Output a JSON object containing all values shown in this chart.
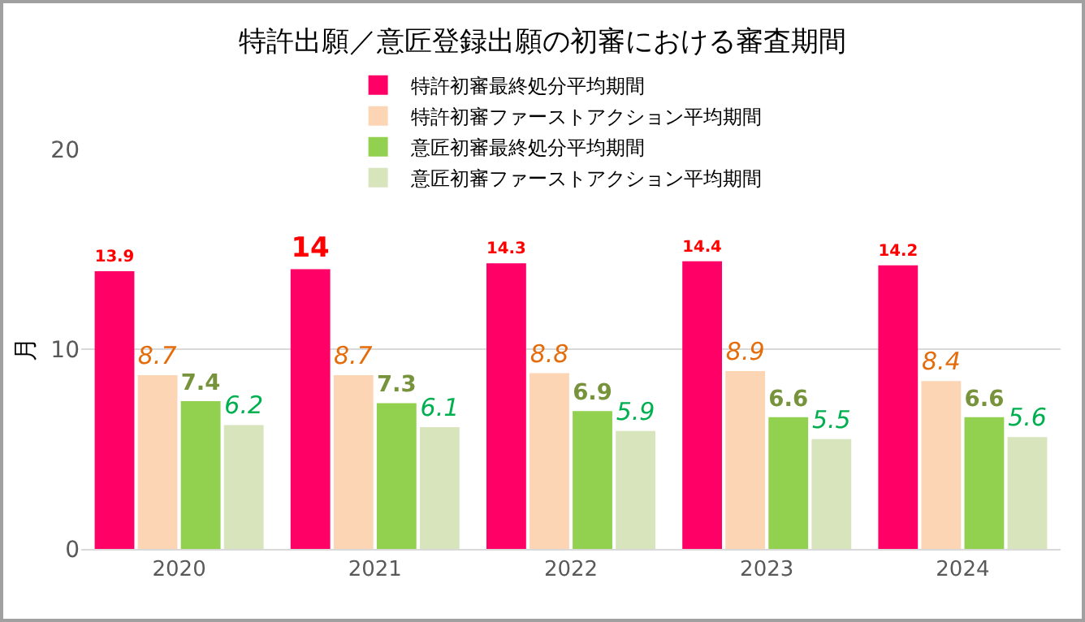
{
  "chart_data": {
    "type": "bar",
    "title": "特許出願／意匠登録出願の初審における審査期間",
    "ylabel": "月",
    "categories": [
      "2020",
      "2021",
      "2022",
      "2023",
      "2024"
    ],
    "series": [
      {
        "name": "特許初審最終処分平均期間",
        "color": "#ff0066",
        "values": [
          13.9,
          14,
          14.3,
          14.4,
          14.2
        ]
      },
      {
        "name": "特許初審ファーストアクション平均期間",
        "color": "#fcd5b5",
        "values": [
          8.7,
          8.7,
          8.8,
          8.9,
          8.4
        ]
      },
      {
        "name": "意匠初審最終処分平均期間",
        "color": "#92d050",
        "values": [
          7.4,
          7.3,
          6.9,
          6.6,
          6.6
        ]
      },
      {
        "name": "意匠初審ファーストアクション平均期間",
        "color": "#d8e4bc",
        "values": [
          6.2,
          6.1,
          5.9,
          5.5,
          5.6
        ]
      }
    ],
    "ylim": [
      0,
      20
    ],
    "yticks": [
      0,
      10,
      20
    ],
    "grid": "y",
    "legend": "top",
    "data_labels": true
  }
}
